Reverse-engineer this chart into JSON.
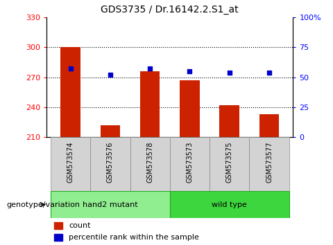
{
  "title": "GDS3735 / Dr.16142.2.S1_at",
  "samples": [
    "GSM573574",
    "GSM573576",
    "GSM573578",
    "GSM573573",
    "GSM573575",
    "GSM573577"
  ],
  "counts": [
    300,
    222,
    276,
    267,
    242,
    233
  ],
  "percentile_ranks": [
    57,
    52,
    57,
    55,
    54,
    54
  ],
  "groups": [
    {
      "label": "hand2 mutant",
      "indices": [
        0,
        1,
        2
      ],
      "color": "#90EE90"
    },
    {
      "label": "wild type",
      "indices": [
        3,
        4,
        5
      ],
      "color": "#3ED63E"
    }
  ],
  "ylim_left": [
    210,
    330
  ],
  "ylim_right": [
    0,
    100
  ],
  "yticks_left": [
    210,
    240,
    270,
    300,
    330
  ],
  "yticks_right": [
    0,
    25,
    50,
    75,
    100
  ],
  "bar_color": "#CC2200",
  "dot_color": "#0000CC",
  "bar_bottom": 210,
  "legend_count_label": "count",
  "legend_pct_label": "percentile rank within the sample",
  "fig_width": 4.8,
  "fig_height": 3.54,
  "fig_dpi": 100
}
